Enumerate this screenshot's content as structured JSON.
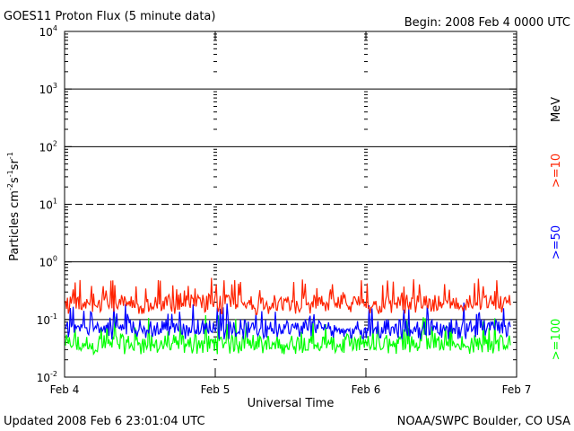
{
  "header": {
    "title": "GOES11 Proton Flux (5 minute data)",
    "begin": "Begin: 2008 Feb 4 0000 UTC"
  },
  "footer": {
    "updated": "Updated 2008 Feb  6 23:01:04 UTC",
    "source": "NOAA/SWPC Boulder, CO USA"
  },
  "chart_data": {
    "type": "line",
    "title": "GOES11 Proton Flux (5 minute data)",
    "xlabel": "Universal Time",
    "ylabel": "Particles cm-2s-1sr-1",
    "yscale": "log",
    "ylim": [
      0.01,
      10000
    ],
    "xlim": [
      0,
      3
    ],
    "x_ticks": [
      {
        "x": 0,
        "label": "Feb 4"
      },
      {
        "x": 1,
        "label": "Feb 5"
      },
      {
        "x": 2,
        "label": "Feb 6"
      },
      {
        "x": 3,
        "label": "Feb 7"
      }
    ],
    "y_ticks": [
      {
        "base": "10",
        "exp": "4",
        "value": 10000
      },
      {
        "base": "10",
        "exp": "3",
        "value": 1000
      },
      {
        "base": "10",
        "exp": "2",
        "value": 100
      },
      {
        "base": "10",
        "exp": "1",
        "value": 10
      },
      {
        "base": "10",
        "exp": "0",
        "value": 1
      },
      {
        "base": "10",
        "exp": "-1",
        "value": 0.1
      },
      {
        "base": "10",
        "exp": "-2",
        "value": 0.01
      }
    ],
    "horizontal_lines": [
      {
        "value": 1000,
        "style": "solid"
      },
      {
        "value": 100,
        "style": "solid"
      },
      {
        "value": 10,
        "style": "dashed"
      },
      {
        "value": 1,
        "style": "solid"
      },
      {
        "value": 0.1,
        "style": "solid"
      }
    ],
    "grid": "dotted vertical day markers",
    "legend_placement": "right",
    "unit_label": "MeV",
    "series": [
      {
        "name": ">=10",
        "color": "#ff2200",
        "level": 0.2,
        "low": 0.12,
        "high": 0.55
      },
      {
        "name": ">=50",
        "color": "#0000ff",
        "level": 0.075,
        "low": 0.045,
        "high": 0.2
      },
      {
        "name": ">=100",
        "color": "#00ff00",
        "level": 0.04,
        "low": 0.025,
        "high": 0.12
      }
    ]
  }
}
